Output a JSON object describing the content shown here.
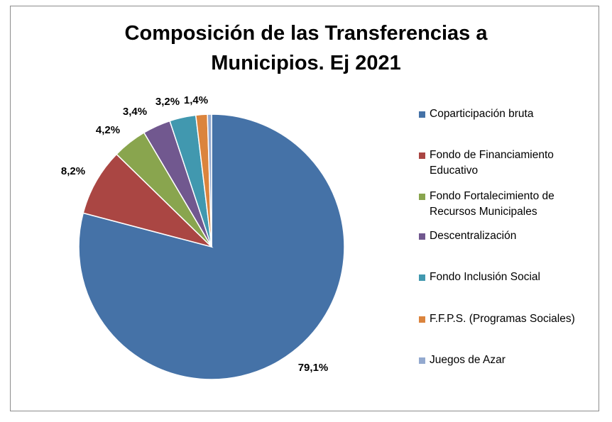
{
  "chart_data": {
    "type": "pie",
    "title_lines": [
      "Composición de las Transferencias a",
      "Municipios. Ej 2021"
    ],
    "slices": [
      {
        "name": "Coparticipación bruta",
        "value": 79.1,
        "label": "79,1%",
        "color": "#4572a7"
      },
      {
        "name": "Fondo de Financiamiento Educativo",
        "value": 8.2,
        "label": "8,2%",
        "color": "#aa4643"
      },
      {
        "name": "Fondo Fortalecimiento de Recursos Municipales",
        "value": 4.2,
        "label": "4,2%",
        "color": "#89a54e"
      },
      {
        "name": "Descentralización",
        "value": 3.4,
        "label": "3,4%",
        "color": "#71588f"
      },
      {
        "name": "Fondo Inclusión Social",
        "value": 3.2,
        "label": "3,2%",
        "color": "#4198af"
      },
      {
        "name": "F.F.P.S. (Programas Sociales)",
        "value": 1.4,
        "label": "1,4%",
        "color": "#db843d"
      },
      {
        "name": "Juegos de Azar",
        "value": 0.5,
        "label": "",
        "color": "#93a9cf"
      }
    ],
    "legend": [
      {
        "lines": [
          "Coparticipación bruta"
        ],
        "color": "#4572a7"
      },
      {
        "lines": [
          "Fondo de Financiamiento",
          "Educativo"
        ],
        "color": "#aa4643"
      },
      {
        "lines": [
          "Fondo Fortalecimiento de",
          "Recursos Municipales"
        ],
        "color": "#89a54e"
      },
      {
        "lines": [
          "Descentralización"
        ],
        "color": "#71588f"
      },
      {
        "lines": [
          "Fondo Inclusión Social"
        ],
        "color": "#4198af"
      },
      {
        "lines": [
          "F.F.P.S. (Programas Sociales)"
        ],
        "color": "#db843d"
      },
      {
        "lines": [
          "Juegos de Azar"
        ],
        "color": "#93a9cf"
      }
    ],
    "legend_position": "right"
  }
}
